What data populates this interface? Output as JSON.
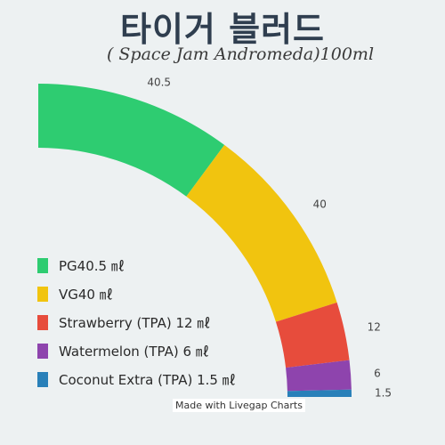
{
  "chart_data": {
    "type": "pie",
    "title": "타이거 블러드",
    "subtitle": "( Space Jam Andromeda)100ml",
    "categories": [
      "PG",
      "VG",
      "Strawberry (TPA)",
      "Watermelon (TPA)",
      "Coconut Extra (TPA)"
    ],
    "values": [
      40.5,
      40,
      12,
      6,
      1.5
    ],
    "value_labels": [
      "40.5",
      "40",
      "12",
      "6",
      "1.5"
    ],
    "legend_labels": [
      "PG40.5 ㎖",
      "VG40 ㎖",
      "Strawberry (TPA) 12 ㎖",
      "Watermelon (TPA) 6 ㎖",
      "Coconut Extra (TPA) 1.5 ㎖"
    ],
    "colors": [
      "#2ecc71",
      "#f1c40f",
      "#e74c3c",
      "#8e44ad",
      "#2980b9"
    ],
    "legend_placement": "bottom-left",
    "style": "quarter donut"
  },
  "footer": {
    "credit": "Made with Livegap Charts"
  }
}
